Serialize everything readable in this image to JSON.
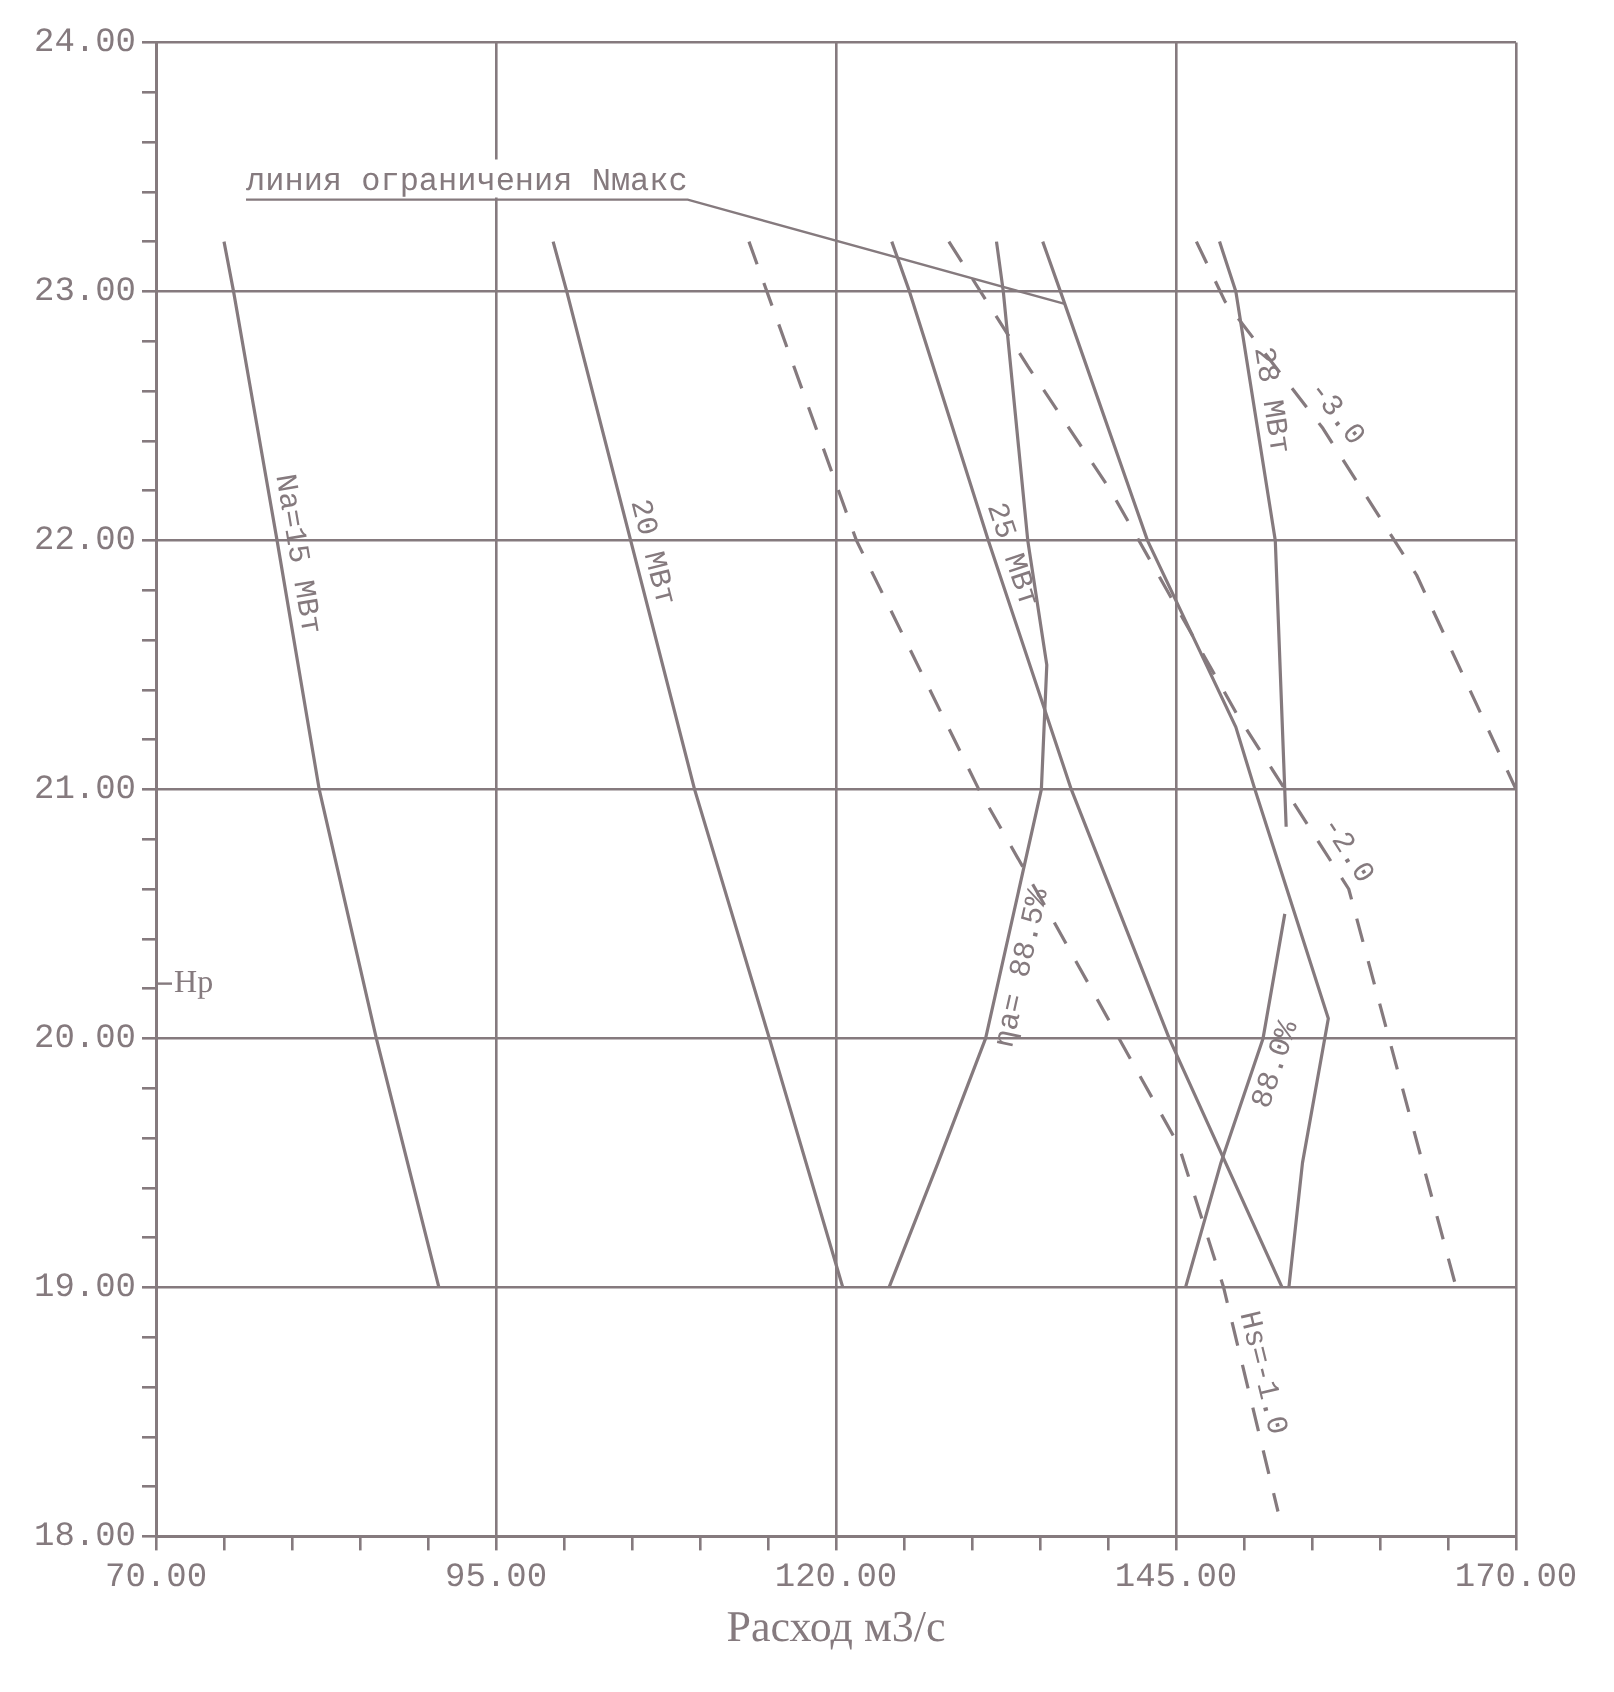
{
  "chart_data": {
    "type": "line",
    "xlabel": "Расход м3/с",
    "xlim": [
      70,
      170
    ],
    "ylim": [
      18,
      24
    ],
    "xticks": [
      {
        "value": 70,
        "label": "70.00"
      },
      {
        "value": 75,
        "label": null
      },
      {
        "value": 80,
        "label": null
      },
      {
        "value": 85,
        "label": null
      },
      {
        "value": 90,
        "label": null
      },
      {
        "value": 95,
        "label": "95.00"
      },
      {
        "value": 100,
        "label": null
      },
      {
        "value": 105,
        "label": null
      },
      {
        "value": 110,
        "label": null
      },
      {
        "value": 115,
        "label": null
      },
      {
        "value": 120,
        "label": "120.00"
      },
      {
        "value": 125,
        "label": null
      },
      {
        "value": 130,
        "label": null
      },
      {
        "value": 135,
        "label": null
      },
      {
        "value": 140,
        "label": null
      },
      {
        "value": 145,
        "label": "145.00"
      },
      {
        "value": 150,
        "label": null
      },
      {
        "value": 155,
        "label": null
      },
      {
        "value": 160,
        "label": null
      },
      {
        "value": 165,
        "label": null
      },
      {
        "value": 170,
        "label": "170.00"
      }
    ],
    "yticks": [
      {
        "value": 18,
        "label": "18.00"
      },
      {
        "value": 18.2,
        "label": null
      },
      {
        "value": 18.4,
        "label": null
      },
      {
        "value": 18.6,
        "label": null
      },
      {
        "value": 18.8,
        "label": null
      },
      {
        "value": 19,
        "label": "19.00"
      },
      {
        "value": 19.2,
        "label": null
      },
      {
        "value": 19.4,
        "label": null
      },
      {
        "value": 19.6,
        "label": null
      },
      {
        "value": 19.8,
        "label": null
      },
      {
        "value": 20,
        "label": "20.00"
      },
      {
        "value": 20.2,
        "label": null
      },
      {
        "value": 20.4,
        "label": null
      },
      {
        "value": 20.6,
        "label": null
      },
      {
        "value": 20.8,
        "label": null
      },
      {
        "value": 21,
        "label": "21.00"
      },
      {
        "value": 21.2,
        "label": null
      },
      {
        "value": 21.4,
        "label": null
      },
      {
        "value": 21.6,
        "label": null
      },
      {
        "value": 21.8,
        "label": null
      },
      {
        "value": 22,
        "label": "22.00"
      },
      {
        "value": 22.2,
        "label": null
      },
      {
        "value": 22.4,
        "label": null
      },
      {
        "value": 22.6,
        "label": null
      },
      {
        "value": 22.8,
        "label": null
      },
      {
        "value": 23,
        "label": "23.00"
      },
      {
        "value": 23.2,
        "label": null
      },
      {
        "value": 23.4,
        "label": null
      },
      {
        "value": 23.6,
        "label": null
      },
      {
        "value": 23.8,
        "label": null
      },
      {
        "value": 24,
        "label": "24.00"
      }
    ],
    "grid": true,
    "legend": false,
    "marker": "none",
    "series": [
      {
        "name": "Na=15 МВт",
        "color": "#857a7e",
        "line_style": "solid",
        "x": [
          75,
          75.7,
          78.9,
          82,
          86.2,
          90.8
        ],
        "values": [
          23.2,
          23,
          22,
          21,
          20,
          19
        ]
      },
      {
        "name": "20 МВт",
        "color": "#857a7e",
        "line_style": "solid",
        "x": [
          99.2,
          100.2,
          104.9,
          109.6,
          115.1,
          120.5
        ],
        "values": [
          23.2,
          23,
          22,
          21,
          20,
          19
        ]
      },
      {
        "name": "25 МВт",
        "color": "#857a7e",
        "line_style": "solid",
        "x": [
          124.1,
          125.4,
          131.2,
          137.3,
          144.5,
          152.8
        ],
        "values": [
          23.2,
          23,
          22,
          21,
          20,
          19
        ]
      },
      {
        "name": "28 МВт",
        "color": "#857a7e",
        "line_style": "solid",
        "x": [
          148.2,
          149.4,
          152.3,
          153.1
        ],
        "values": [
          23.2,
          23,
          22,
          20.85
        ]
      },
      {
        "name": "ηa= 88.5%",
        "color": "#857a7e",
        "line_style": "solid",
        "x": [
          123.9,
          127.5,
          131,
          135.1,
          135.5,
          134.1,
          132.3,
          131.8
        ],
        "values": [
          19,
          19.5,
          20,
          21,
          21.5,
          22,
          23,
          23.2
        ]
      },
      {
        "name": "88.0%",
        "color": "#857a7e",
        "line_style": "solid",
        "x": [
          145.7,
          148.3,
          151.4,
          153
        ],
        "values": [
          19,
          19.5,
          20,
          20.5
        ]
      },
      {
        "name": "Hs=-1.0",
        "color": "#857a7e",
        "line_style": "dashed",
        "x": [
          113.6,
          121.5,
          130.5,
          135.7,
          145.2,
          148.5,
          152.5
        ],
        "values": [
          23.2,
          22,
          21,
          20.5,
          19.57,
          19,
          18.1
        ]
      },
      {
        "name": "-2.0",
        "color": "#857a7e",
        "line_style": "dashed",
        "x": [
          128.3,
          134.1,
          140.2,
          149.5,
          157.7,
          165.6
        ],
        "values": [
          23.2,
          22.7,
          22.2,
          21.3,
          20.6,
          19
        ]
      },
      {
        "name": "-3.0",
        "color": "#857a7e",
        "line_style": "dashed",
        "x": [
          146.5,
          148.6,
          155.8,
          162.7,
          170
        ],
        "values": [
          23.2,
          22.96,
          22.45,
          21.86,
          21
        ]
      },
      {
        "name": "линия ограничения Nмакс",
        "color": "#857a7e",
        "line_style": "solid",
        "x": [
          135.2,
          136.5,
          142.9,
          149.4,
          150.8,
          156.2,
          154.3,
          153.3
        ],
        "values": [
          23.2,
          23,
          22,
          21.25,
          21,
          20.08,
          19.5,
          19
        ]
      }
    ],
    "annotations": [
      "Hp"
    ]
  }
}
